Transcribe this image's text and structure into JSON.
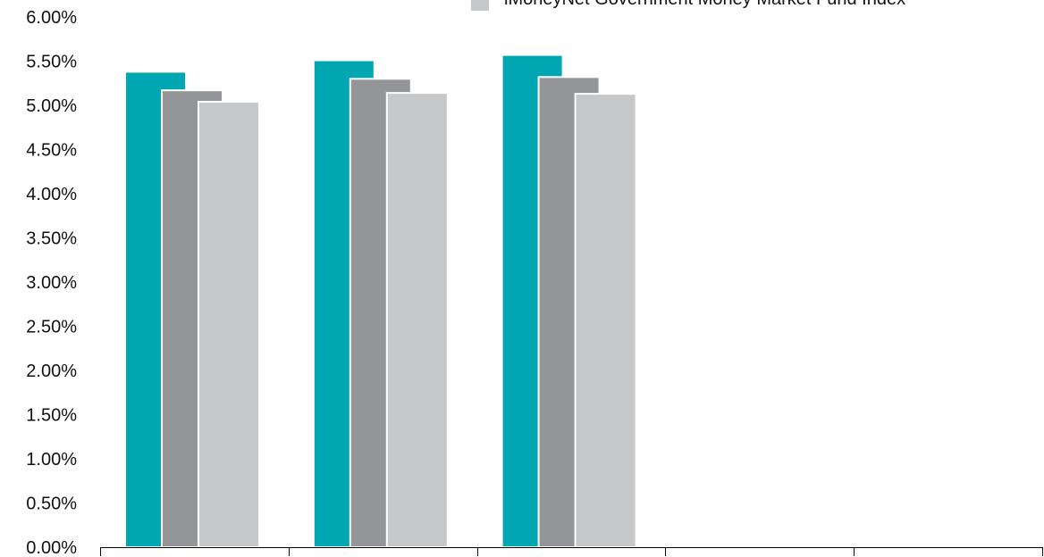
{
  "chart_data": {
    "type": "bar",
    "title": "",
    "xlabel": "",
    "ylabel": "",
    "categories": [
      "",
      "",
      "",
      "",
      ""
    ],
    "ylim": [
      0,
      6
    ],
    "y_ticks": [
      "0.00%",
      "0.50%",
      "1.00%",
      "1.50%",
      "2.00%",
      "2.50%",
      "3.00%",
      "3.50%",
      "4.00%",
      "4.50%",
      "5.00%",
      "5.50%",
      "6.00%"
    ],
    "grid": false,
    "legend_position": "top-right",
    "series": [
      {
        "name": "",
        "color": "#00a6b2",
        "values": [
          5.38,
          5.51,
          5.57,
          null,
          null
        ]
      },
      {
        "name": "",
        "color": "#939598",
        "values": [
          5.17,
          5.3,
          5.32,
          null,
          null
        ]
      },
      {
        "name": "iMoneyNet Government Money Market Fund Index",
        "color": "#c6c7c8",
        "values": [
          5.04,
          5.14,
          5.13,
          null,
          null
        ]
      }
    ]
  }
}
